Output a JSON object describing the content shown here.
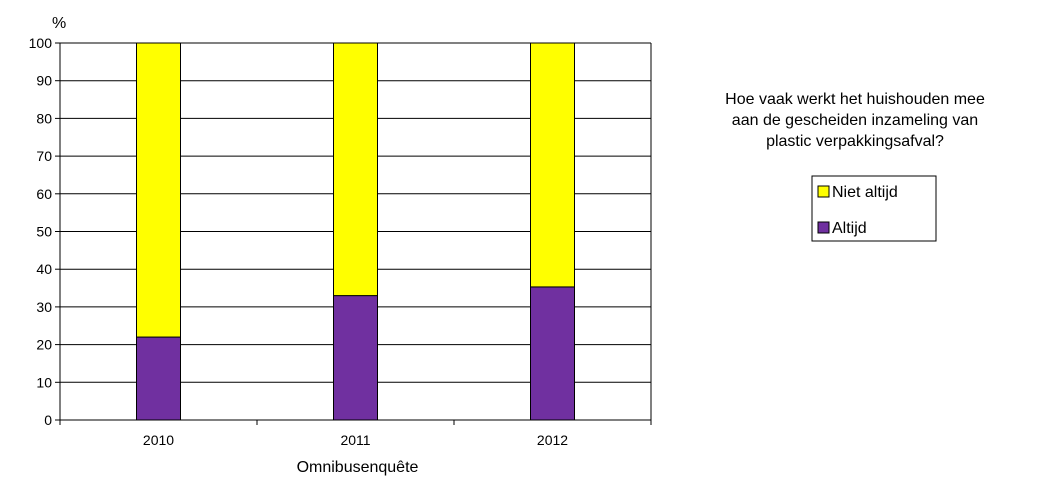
{
  "chart_data": {
    "type": "bar",
    "stacked": true,
    "categories": [
      "2010",
      "2011",
      "2012"
    ],
    "series": [
      {
        "name": "Altijd",
        "values": [
          22,
          33,
          35.3
        ],
        "color": "#7030A0"
      },
      {
        "name": "Niet altijd",
        "values": [
          78,
          67,
          64.7
        ],
        "color": "#FFFF00"
      }
    ],
    "ylim": [
      0,
      100
    ],
    "yticks": [
      0,
      10,
      20,
      30,
      40,
      50,
      60,
      70,
      80,
      90,
      100
    ],
    "ylabel": "%",
    "xlabel": "Omnibusenquête",
    "grid": true,
    "legend": {
      "placement": "right",
      "title_lines": [
        "Hoe vaak werkt het huishouden mee",
        "aan de gescheiden inzameling van",
        "plastic verpakkingsafval?"
      ],
      "entries": [
        "Niet altijd",
        "Altijd"
      ]
    }
  }
}
